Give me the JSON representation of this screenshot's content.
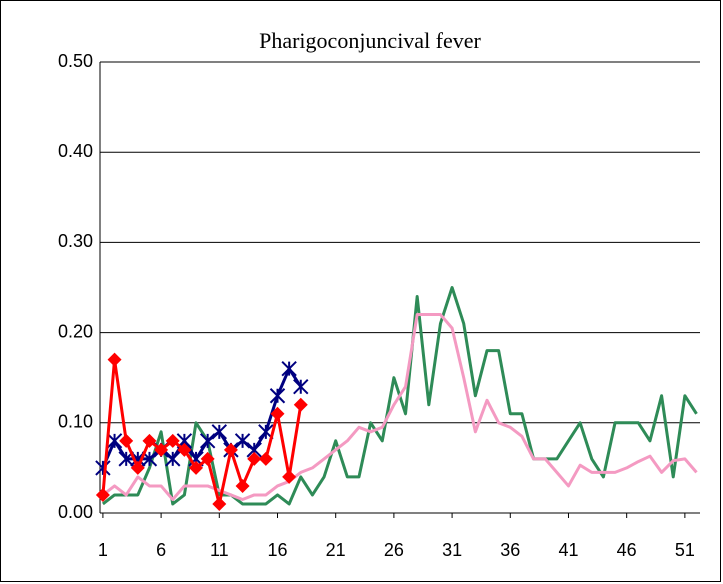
{
  "chart_data": {
    "type": "line",
    "title": "Pharigoconjuncival fever",
    "x": [
      1,
      2,
      3,
      4,
      5,
      6,
      7,
      8,
      9,
      10,
      11,
      12,
      13,
      14,
      15,
      16,
      17,
      18,
      19,
      20,
      21,
      22,
      23,
      24,
      25,
      26,
      27,
      28,
      29,
      30,
      31,
      32,
      33,
      34,
      35,
      36,
      37,
      38,
      39,
      40,
      41,
      42,
      43,
      44,
      45,
      46,
      47,
      48,
      49,
      50,
      51,
      52
    ],
    "xlim": [
      0.75,
      52.3
    ],
    "xticks": [
      1,
      6,
      11,
      16,
      21,
      26,
      31,
      36,
      41,
      46,
      51
    ],
    "ylim": [
      0,
      0.5
    ],
    "yticks": [
      {
        "value": 0,
        "label": "0.00"
      },
      {
        "value": 0.1,
        "label": "0.10"
      },
      {
        "value": 0.2,
        "label": "0.20"
      },
      {
        "value": 0.3,
        "label": "0.30"
      },
      {
        "value": 0.4,
        "label": "0.40"
      },
      {
        "value": 0.5,
        "label": "0.50"
      }
    ],
    "grid": true,
    "series": [
      {
        "color": "#2e8b57",
        "marker": "none",
        "values": [
          0.01,
          0.02,
          0.02,
          0.02,
          0.05,
          0.09,
          0.01,
          0.02,
          0.1,
          0.08,
          0.02,
          0.02,
          0.01,
          0.01,
          0.01,
          0.02,
          0.01,
          0.04,
          0.02,
          0.04,
          0.08,
          0.04,
          0.04,
          0.1,
          0.08,
          0.15,
          0.11,
          0.24,
          0.12,
          0.21,
          0.25,
          0.21,
          0.13,
          0.18,
          0.18,
          0.11,
          0.11,
          0.06,
          0.06,
          0.06,
          0.08,
          0.1,
          0.06,
          0.04,
          0.1,
          0.1,
          0.1,
          0.08,
          0.13,
          0.04,
          0.13,
          0.11
        ]
      },
      {
        "color": "#f49ac2",
        "marker": "none",
        "values": [
          0.02,
          0.03,
          0.02,
          0.04,
          0.03,
          0.03,
          0.015,
          0.03,
          0.03,
          0.03,
          0.025,
          0.02,
          0.015,
          0.02,
          0.02,
          0.03,
          0.035,
          0.045,
          0.05,
          0.06,
          0.07,
          0.08,
          0.095,
          0.09,
          0.095,
          0.12,
          0.14,
          0.22,
          0.22,
          0.22,
          0.205,
          0.15,
          0.09,
          0.125,
          0.1,
          0.095,
          0.085,
          0.06,
          0.06,
          0.045,
          0.03,
          0.053,
          0.045,
          0.045,
          0.045,
          0.05,
          0.057,
          0.063,
          0.045,
          0.058,
          0.06,
          0.045
        ]
      },
      {
        "color": "#000080",
        "marker": "asterisk",
        "values": [
          0.05,
          0.08,
          0.06,
          0.06,
          0.06,
          0.07,
          0.06,
          0.08,
          0.06,
          0.08,
          0.09,
          0.07,
          0.08,
          0.07,
          0.09,
          0.13,
          0.16,
          0.14,
          null,
          null,
          null,
          null,
          null,
          null,
          null,
          null,
          null,
          null,
          null,
          null,
          null,
          null,
          null,
          null,
          null,
          null,
          null,
          null,
          null,
          null,
          null,
          null,
          null,
          null,
          null,
          null,
          null,
          null,
          null,
          null,
          null,
          null
        ]
      },
      {
        "color": "#ff0000",
        "marker": "diamond",
        "values": [
          0.02,
          0.17,
          0.08,
          0.05,
          0.08,
          0.07,
          0.08,
          0.07,
          0.05,
          0.06,
          0.01,
          0.07,
          0.03,
          0.06,
          0.06,
          0.11,
          0.04,
          0.12,
          null,
          null,
          null,
          null,
          null,
          null,
          null,
          null,
          null,
          null,
          null,
          null,
          null,
          null,
          null,
          null,
          null,
          null,
          null,
          null,
          null,
          null,
          null,
          null,
          null,
          null,
          null,
          null,
          null,
          null,
          null,
          null,
          null,
          null
        ]
      }
    ]
  }
}
